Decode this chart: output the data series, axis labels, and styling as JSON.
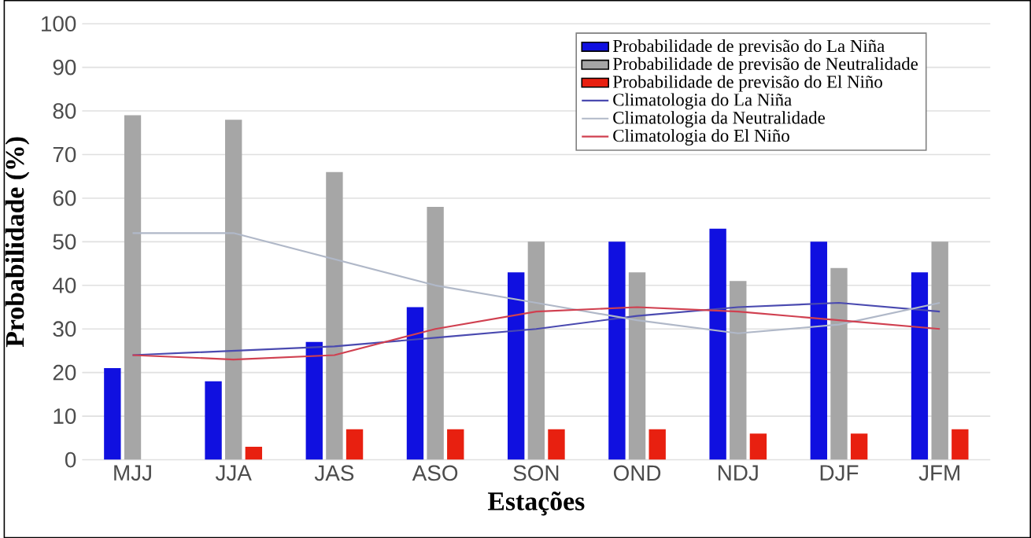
{
  "chart_data": {
    "type": "bar",
    "xlabel": "Estações",
    "ylabel": "Probabilidade (%)",
    "categories": [
      "MJJ",
      "JJA",
      "JAS",
      "ASO",
      "SON",
      "OND",
      "NDJ",
      "DJF",
      "JFM"
    ],
    "series": [
      {
        "name": "Probabilidade de previsão do La Niña",
        "color": "#1010e0",
        "values": [
          21,
          18,
          27,
          35,
          43,
          50,
          53,
          50,
          43
        ]
      },
      {
        "name": "Probabilidade de previsão de Neutralidade",
        "color": "#a6a6a6",
        "values": [
          79,
          78,
          66,
          58,
          50,
          43,
          41,
          44,
          50
        ]
      },
      {
        "name": "Probabilidade de previsão do El Niño",
        "color": "#e82010",
        "values": [
          0,
          3,
          7,
          7,
          7,
          7,
          6,
          6,
          7
        ]
      },
      {
        "name": "Climatologia do La Niña",
        "type": "line",
        "color": "#4a4ab0",
        "values": [
          24,
          25,
          26,
          28,
          30,
          33,
          35,
          36,
          34
        ]
      },
      {
        "name": "Climatologia da Neutralidade",
        "type": "line",
        "color": "#b0b8c8",
        "values": [
          52,
          52,
          46,
          40,
          36,
          32,
          29,
          31,
          36
        ]
      },
      {
        "name": "Climatologia do El Niño",
        "type": "line",
        "color": "#d04050",
        "values": [
          24,
          23,
          24,
          30,
          34,
          35,
          34,
          32,
          30
        ]
      }
    ],
    "ylim": [
      0,
      100
    ],
    "yticks": [
      0,
      10,
      20,
      30,
      40,
      50,
      60,
      70,
      80,
      90,
      100
    ],
    "grid": "y",
    "legend": "top right"
  }
}
